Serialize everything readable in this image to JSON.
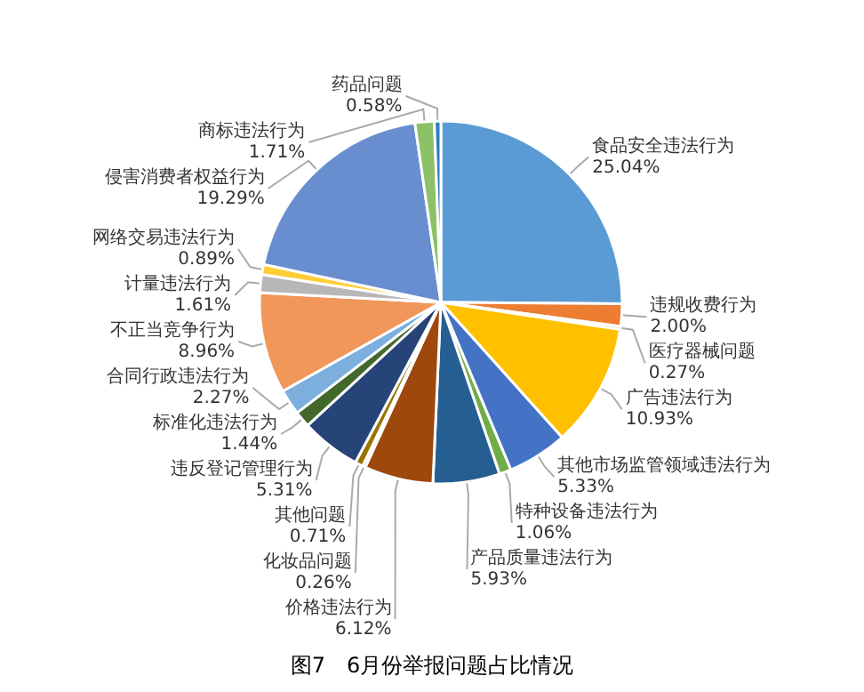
{
  "chart_data": {
    "type": "pie",
    "title": "图7　6月份举报问题占比情况",
    "categories": [
      "食品安全违法行为",
      "违规收费行为",
      "医疗器械问题",
      "广告违法行为",
      "其他市场监管领域违法行为",
      "特种设备违法行为",
      "产品质量违法行为",
      "价格违法行为",
      "化妆品问题",
      "其他问题",
      "违反登记管理行为",
      "标准化违法行为",
      "合同行政违法行为",
      "不正当竞争行为",
      "计量违法行为",
      "网络交易违法行为",
      "侵害消费者权益行为",
      "商标违法行为",
      "药品问题"
    ],
    "values": [
      25.04,
      2.0,
      0.27,
      10.93,
      5.33,
      1.06,
      5.93,
      6.12,
      0.26,
      0.71,
      5.31,
      1.44,
      2.27,
      8.96,
      1.61,
      0.89,
      19.29,
      1.71,
      0.58
    ],
    "value_labels": [
      "25.04%",
      "2.00%",
      "0.27%",
      "10.93%",
      "5.33%",
      "1.06%",
      "5.93%",
      "6.12%",
      "0.26%",
      "0.71%",
      "5.31%",
      "1.44%",
      "2.27%",
      "8.96%",
      "1.61%",
      "0.89%",
      "19.29%",
      "1.71%",
      "0.58%"
    ],
    "colors": [
      "#5b9bd5",
      "#ed7d31",
      "#a5a5a5",
      "#ffc000",
      "#4472c4",
      "#70ad47",
      "#255e91",
      "#9e480e",
      "#636363",
      "#997300",
      "#264478",
      "#43682b",
      "#7cafdd",
      "#f1975a",
      "#b7b7b7",
      "#ffcd33",
      "#698ed0",
      "#8cc168",
      "#327dc2"
    ],
    "legend": false
  }
}
